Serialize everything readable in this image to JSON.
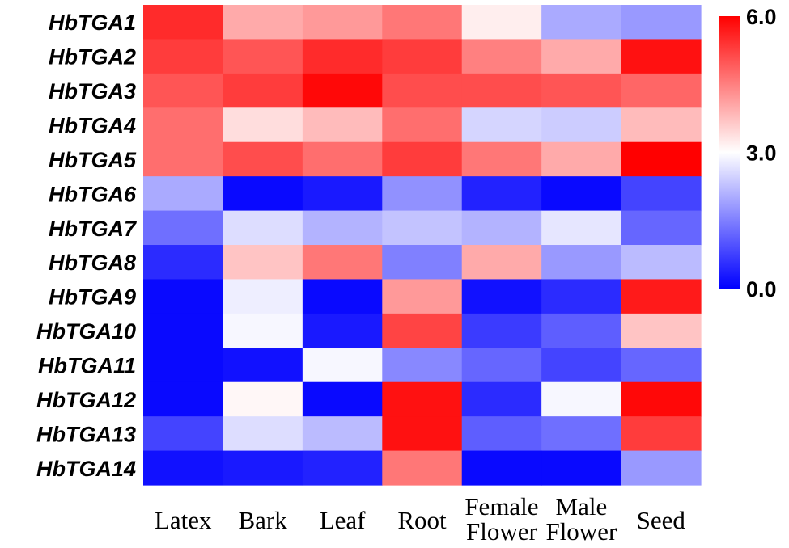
{
  "chart_data": {
    "type": "heatmap",
    "title": "",
    "xlabel": "",
    "ylabel": "",
    "rows": [
      "HbTGA1",
      "HbTGA2",
      "HbTGA3",
      "HbTGA4",
      "HbTGA5",
      "HbTGA6",
      "HbTGA7",
      "HbTGA8",
      "HbTGA9",
      "HbTGA10",
      "HbTGA11",
      "HbTGA12",
      "HbTGA13",
      "HbTGA14"
    ],
    "columns": [
      [
        "Latex"
      ],
      [
        "Bark"
      ],
      [
        "Leaf"
      ],
      [
        "Root"
      ],
      [
        "Female",
        "Flower"
      ],
      [
        "Male",
        "Flower"
      ],
      [
        "Seed"
      ]
    ],
    "values": [
      [
        5.5,
        4.0,
        4.2,
        4.6,
        3.2,
        2.0,
        1.8
      ],
      [
        5.3,
        5.0,
        5.5,
        5.3,
        4.5,
        4.0,
        5.8
      ],
      [
        5.0,
        5.3,
        5.9,
        5.1,
        5.1,
        5.0,
        4.8
      ],
      [
        4.7,
        3.4,
        3.8,
        4.7,
        2.5,
        2.4,
        3.8
      ],
      [
        4.7,
        5.1,
        4.7,
        5.3,
        4.6,
        4.0,
        6.0
      ],
      [
        2.0,
        0.1,
        0.3,
        1.7,
        0.4,
        0.1,
        0.8
      ],
      [
        1.3,
        2.6,
        2.1,
        2.3,
        2.1,
        2.7,
        1.2
      ],
      [
        0.5,
        3.7,
        4.6,
        1.5,
        4.0,
        1.8,
        2.2
      ],
      [
        0.1,
        2.8,
        0.1,
        4.2,
        0.2,
        0.5,
        5.7
      ],
      [
        0.1,
        2.9,
        0.3,
        5.2,
        0.7,
        1.1,
        3.7
      ],
      [
        0.1,
        0.2,
        2.9,
        1.6,
        1.2,
        0.8,
        1.2
      ],
      [
        0.1,
        3.1,
        0.1,
        5.8,
        0.5,
        2.9,
        5.9
      ],
      [
        0.8,
        2.6,
        2.2,
        5.8,
        1.1,
        1.3,
        5.3
      ],
      [
        0.2,
        0.3,
        0.4,
        4.6,
        0.1,
        0.1,
        1.8
      ]
    ],
    "zlim": [
      0.0,
      6.0
    ],
    "colorscale": {
      "low": "#0000ff",
      "mid": "#ffffff",
      "high": "#ff0000"
    },
    "colorbar_labels": [
      "6.0",
      "3.0",
      "0.0"
    ],
    "colorbar_values": [
      6.0,
      3.0,
      0.0
    ],
    "legend_position": "right"
  }
}
